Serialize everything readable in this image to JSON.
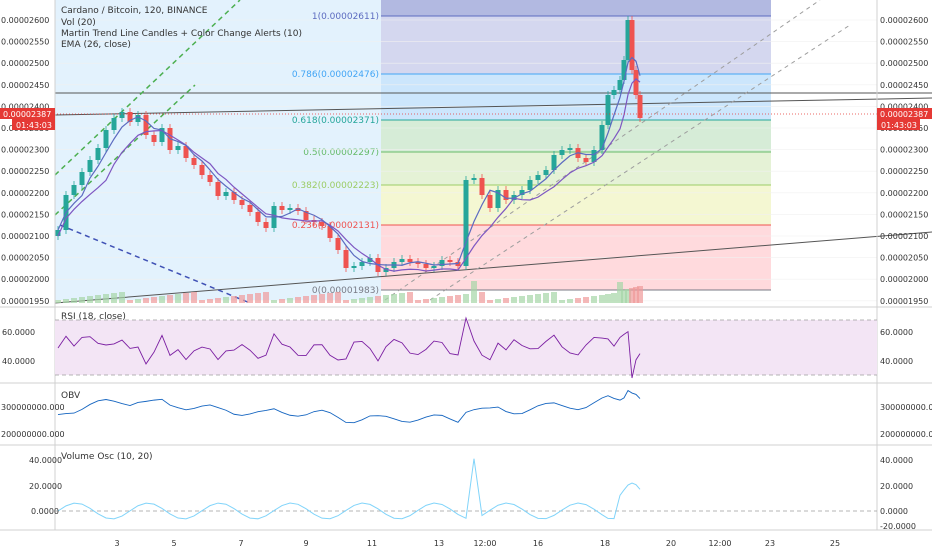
{
  "main": {
    "title": "Cardano / Bitcoin, 120, BINANCE",
    "indicators": [
      "Vol (20)",
      "Martin Trend Line Candles + Color Change Alerts (10)",
      "EMA (26, close)"
    ],
    "last_price": "0.00002387",
    "countdown": "01:43:03",
    "price_axis_labels": [
      "0.00002600",
      "0.00002550",
      "0.00002500",
      "0.00002450",
      "0.00002400",
      "0.00002350",
      "0.00002300",
      "0.00002250",
      "0.00002200",
      "0.00002150",
      "0.00002100",
      "0.00002050",
      "0.00002000",
      "0.00001950"
    ],
    "fib_levels": [
      {
        "label": "1(0.00002611)",
        "color": "#5c6bc0",
        "fill": "#c5cae9"
      },
      {
        "label": "0.786(0.00002476)",
        "color": "#42a5f5",
        "fill": "#bbdefb"
      },
      {
        "label": "0.618(0.00002371)",
        "color": "#26a69a",
        "fill": "#c8e6c9"
      },
      {
        "label": "0.5(0.00002297)",
        "color": "#66bb6a",
        "fill": "#dcedc8"
      },
      {
        "label": "0.382(0.00002223)",
        "color": "#9ccc65",
        "fill": "#f0f4c3"
      },
      {
        "label": "0.236(0.00002131)",
        "color": "#ef5350",
        "fill": "#ffcdd2"
      },
      {
        "label": "0(0.00001983)",
        "color": "#787b86",
        "fill": "#ffcdd2"
      }
    ],
    "colors": {
      "up": "#26a69a",
      "down": "#ef5350",
      "ema": "#7e57c2",
      "trend": "#5c6bc0",
      "price_tag": "#e53935"
    }
  },
  "rsi": {
    "label": "RSI (18, close)",
    "axis_labels": [
      "60.0000",
      "40.0000"
    ]
  },
  "obv": {
    "label": "OBV",
    "axis_labels": [
      "300000000.000",
      "200000000.000"
    ]
  },
  "vosc": {
    "label": "Volume Osc (10, 20)",
    "axis_labels": [
      "40.0000",
      "20.0000",
      "0.0000",
      "-20.0000"
    ]
  },
  "time_axis": [
    "3",
    "5",
    "7",
    "9",
    "11",
    "13",
    "12:00",
    "16",
    "18",
    "20",
    "12:00",
    "23",
    "25"
  ]
}
